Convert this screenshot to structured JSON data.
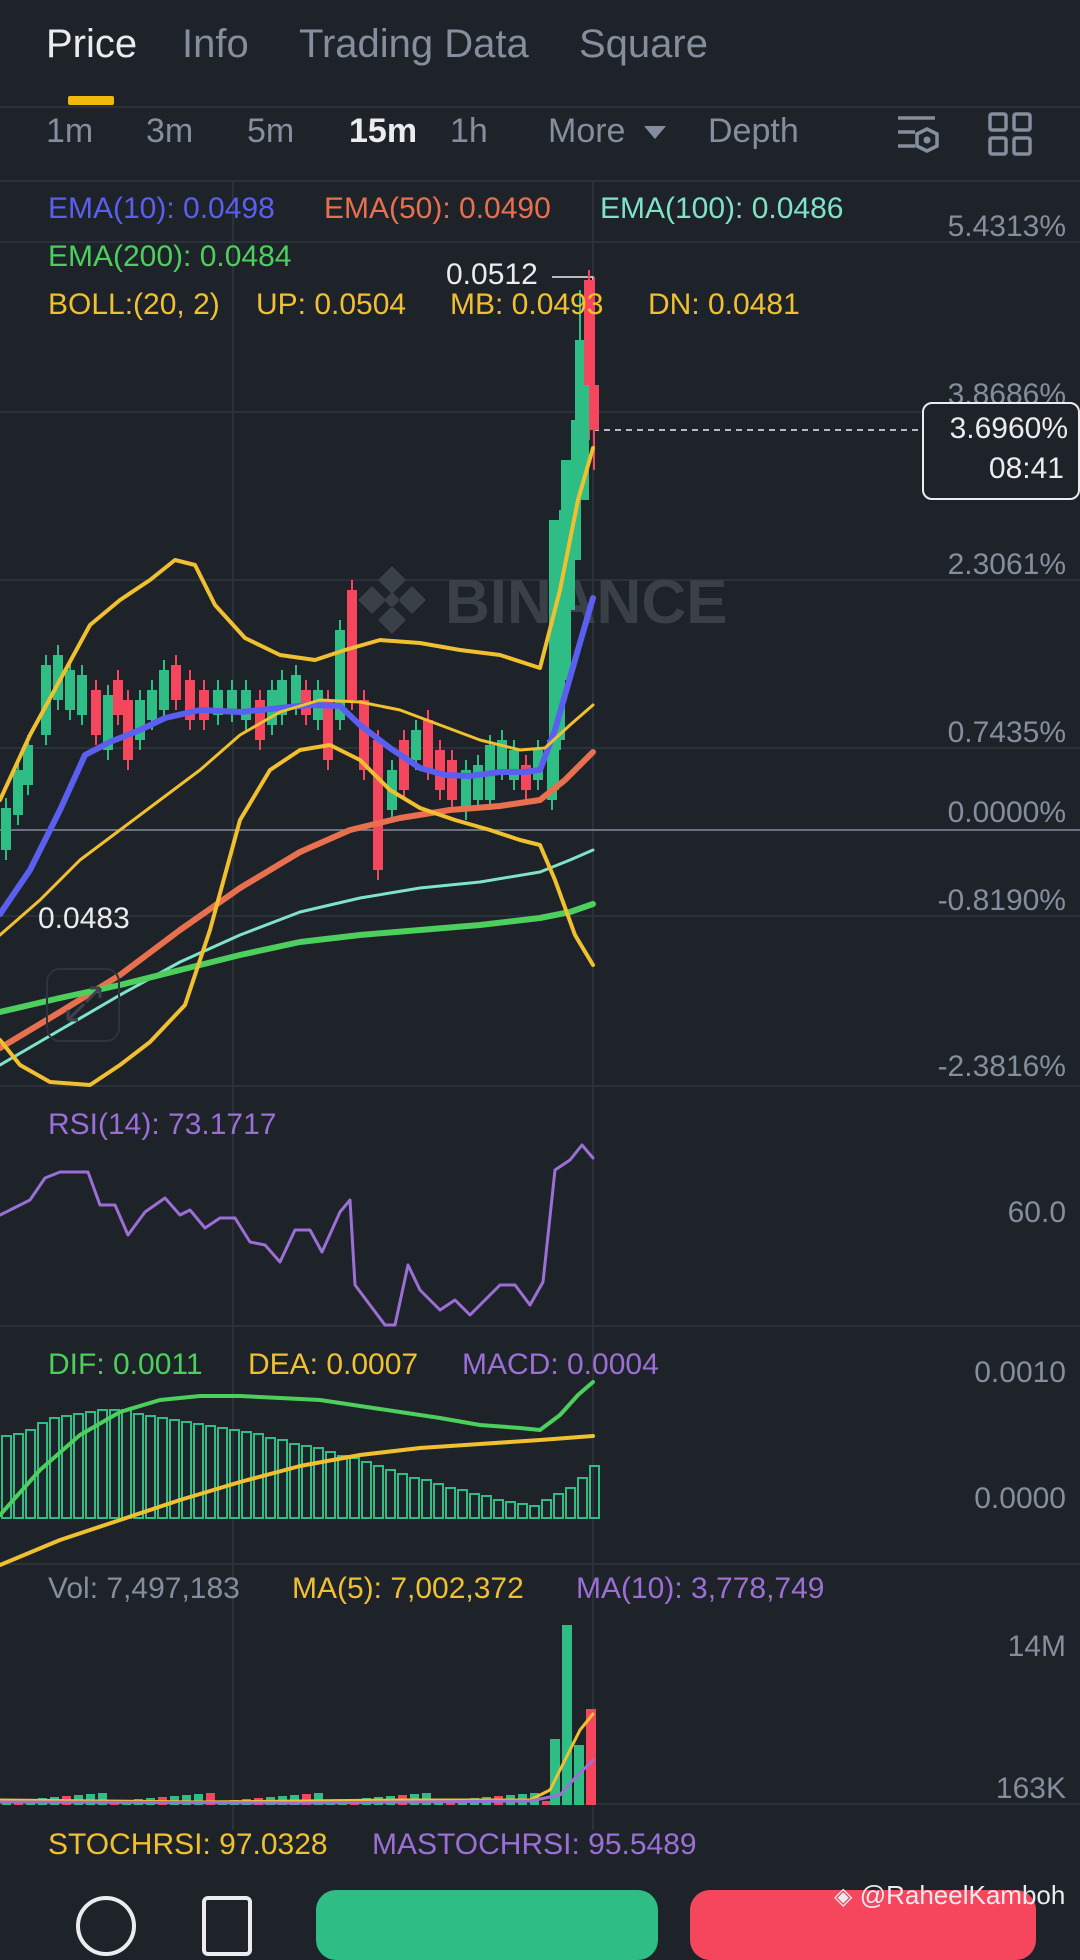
{
  "tabs": [
    {
      "label": "Price",
      "active": true
    },
    {
      "label": "Info",
      "active": false
    },
    {
      "label": "Trading Data",
      "active": false
    },
    {
      "label": "Square",
      "active": false
    }
  ],
  "intervals": [
    "1m",
    "3m",
    "5m",
    "15m",
    "1h",
    "More",
    "Depth"
  ],
  "active_interval": "15m",
  "indicators": {
    "ema10": "EMA(10): 0.0498",
    "ema50": "EMA(50): 0.0490",
    "ema100": "EMA(100): 0.0486",
    "ema200": "EMA(200): 0.0484",
    "boll": "BOLL:(20, 2)",
    "boll_up": "UP: 0.0504",
    "boll_mb": "MB: 0.0493",
    "boll_dn": "DN: 0.0481"
  },
  "price_chart": {
    "high_label": "0.0512",
    "low_label": "0.0483",
    "axis_labels": [
      "5.4313%",
      "3.8686%",
      "2.3061%",
      "0.7435%",
      "0.0000%",
      "-0.8190%",
      "-2.3816%"
    ],
    "current": {
      "value": "3.6960%",
      "countdown": "08:41"
    },
    "watermark": "BINANCE"
  },
  "rsi": {
    "label": "RSI(14): 73.1717",
    "axis": "60.0"
  },
  "macd": {
    "dif": "DIF: 0.0011",
    "dea": "DEA: 0.0007",
    "macd": "MACD: 0.0004",
    "axis_top": "0.0010",
    "axis_bottom": "0.0000"
  },
  "volume": {
    "vol": "Vol: 7,497,183",
    "ma5": "MA(5): 7,002,372",
    "ma10": "MA(10): 3,778,749",
    "axis_top": "14M",
    "axis_bottom": "163K"
  },
  "stoch": {
    "stochrsi": "STOCHRSI: 97.0328",
    "mastochrsi": "MASTOCHRSI: 95.5489"
  },
  "watermark_credit": "@RaheelKamboh",
  "colors": {
    "ema10": "#5b5ff0",
    "ema50": "#e8704e",
    "ema100": "#7ee3c7",
    "ema200": "#4ccf5c",
    "boll": "#f0c030",
    "up_candle": "#2ebd85",
    "down_candle": "#f6465d",
    "rsi": "#9c6fd6"
  },
  "icons": [
    "chart-settings-icon",
    "grid-layout-icon",
    "expand-arrows-icon",
    "binance-logo-icon",
    "dropdown-caret-icon"
  ]
}
